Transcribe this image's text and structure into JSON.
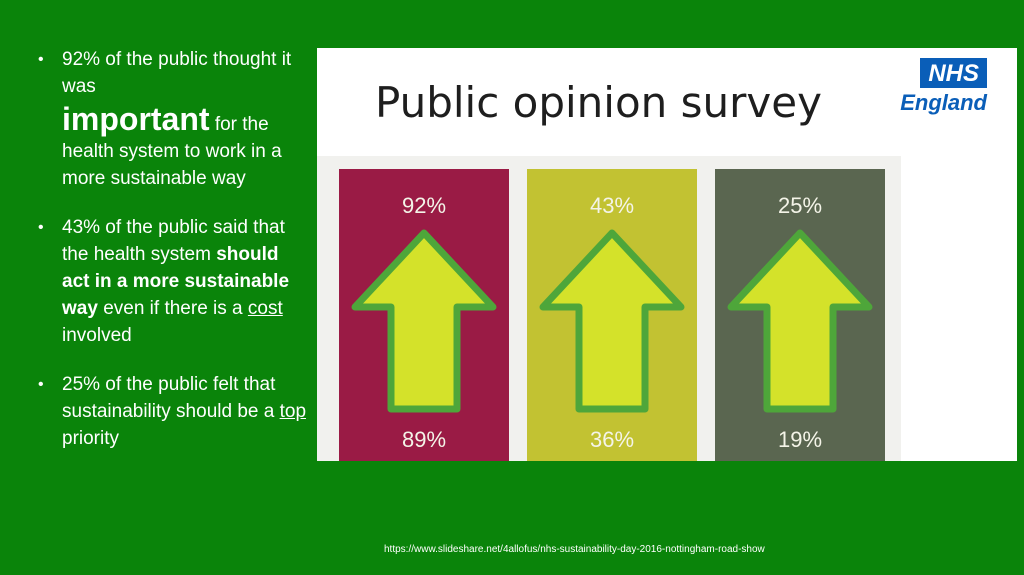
{
  "bullets": [
    {
      "line1": "92% of the public thought it was",
      "emphasis": "important",
      "line2": "for the health system to work in a more sustainable way"
    },
    {
      "prefix": "43% of the public said that the health system",
      "bold": "should act in a more sustainable way",
      "middle": "even if there is a",
      "underlined": "cost",
      "suffix": "involved"
    },
    {
      "prefix": "25% of the public felt that sustainability should be a",
      "underlined": "top",
      "suffix": "priority"
    }
  ],
  "panel": {
    "title": "Public opinion survey",
    "logo_top": "NHS",
    "logo_bottom": "England"
  },
  "columns": [
    {
      "top_label": "92%",
      "bottom_label": "89%",
      "top_value": 92,
      "bottom_value": 89,
      "color": "#9a1b45"
    },
    {
      "top_label": "43%",
      "bottom_label": "36%",
      "top_value": 43,
      "bottom_value": 36,
      "color": "#c2c232"
    },
    {
      "top_label": "25%",
      "bottom_label": "19%",
      "top_value": 25,
      "bottom_value": 19,
      "color": "#5a6650"
    }
  ],
  "colors": {
    "background": "#0a840a",
    "arrow_fill": "#d4e22a",
    "arrow_outline": "#4ea63a",
    "nhs_blue": "#0a5eb8"
  },
  "source": "https://www.slideshare.net/4allofus/nhs-sustainability-day-2016-nottingham-road-show"
}
